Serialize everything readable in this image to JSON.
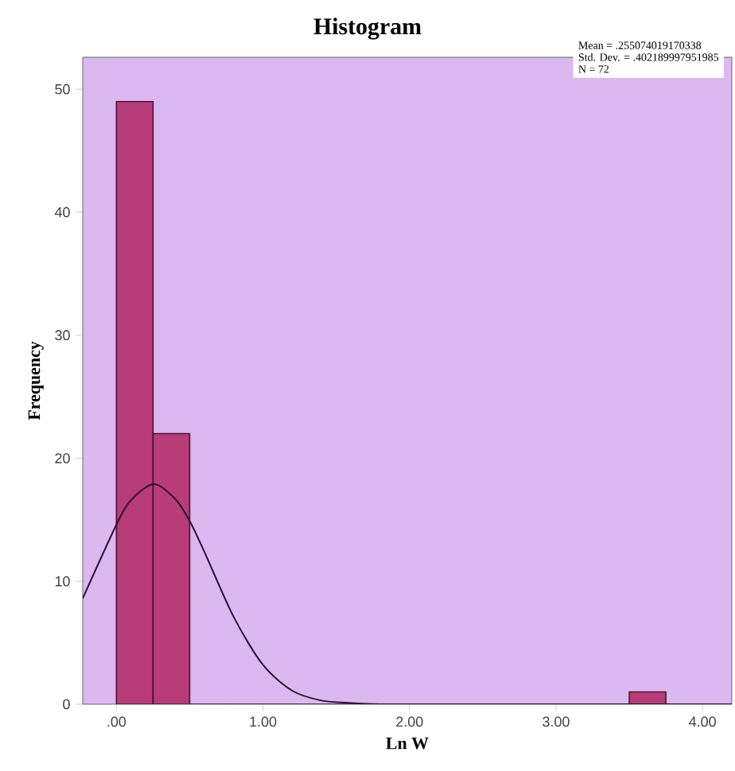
{
  "chart_data": {
    "type": "histogram",
    "title": "Histogram",
    "xlabel": "Ln W",
    "ylabel": "Frequency",
    "series": [
      {
        "color": "#b83c78",
        "bins": [
          0,
          0.25,
          0.5,
          0.75,
          1.0,
          1.25,
          1.5,
          1.75,
          2.0,
          2.25,
          2.5,
          2.75,
          3.0,
          3.25,
          3.5,
          3.75
        ],
        "values": [
          49,
          22,
          0,
          0,
          0,
          0,
          0,
          0,
          0,
          0,
          0,
          0,
          0,
          0,
          1
        ]
      },
      {
        "type": "line",
        "color": "#2a1030",
        "x": [
          -0.23,
          0,
          0.1,
          0.255,
          0.4,
          0.5,
          0.6,
          0.8,
          1.0,
          1.2,
          1.4,
          1.6,
          1.8,
          2.0,
          4.2
        ],
        "values": [
          8.6,
          14.6,
          16.6,
          17.9,
          16.7,
          14.9,
          12.4,
          7.1,
          3.2,
          1.1,
          0.3,
          0.1,
          0,
          0,
          0
        ]
      }
    ],
    "xlim": [
      -0.23,
      4.2
    ],
    "ylim": [
      0,
      52.6
    ],
    "xticks": [
      {
        "value": 0,
        "label": ".00"
      },
      {
        "value": 1,
        "label": "1.00"
      },
      {
        "value": 2,
        "label": "2.00"
      },
      {
        "value": 3,
        "label": "3.00"
      },
      {
        "value": 4,
        "label": "4.00"
      }
    ],
    "yticks": [
      0,
      10,
      20,
      30,
      40,
      50
    ],
    "annotations": [
      "Mean = .255074019170338",
      "Std. Dev. = .402189997951985",
      "N = 72"
    ]
  }
}
